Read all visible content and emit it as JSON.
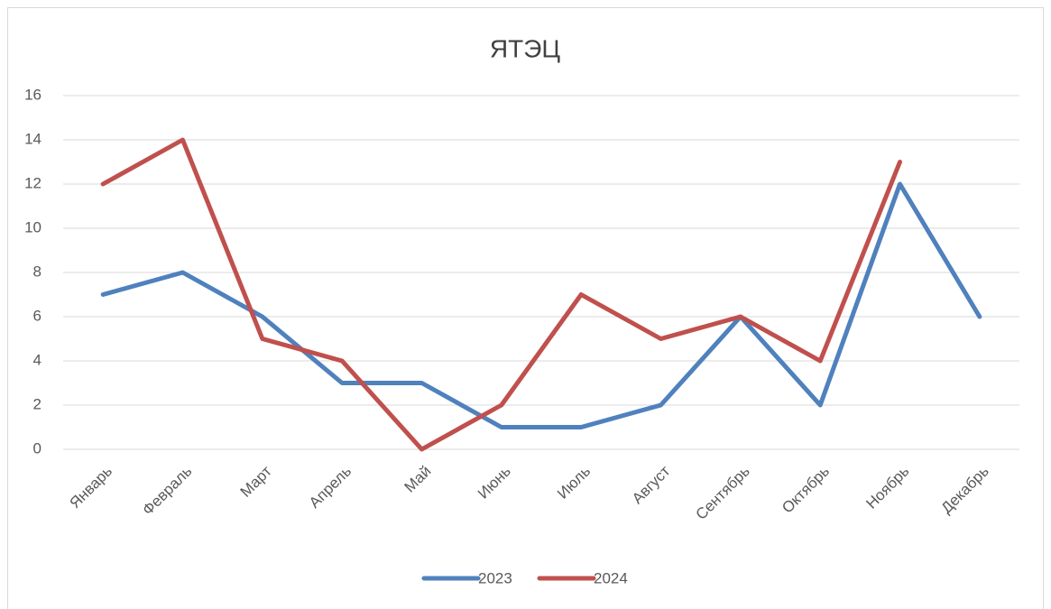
{
  "chart_data": {
    "type": "line",
    "title": "ЯТЭЦ",
    "categories": [
      "Январь",
      "Февраль",
      "Март",
      "Апрель",
      "Май",
      "Июнь",
      "Июль",
      "Август",
      "Сентябрь",
      "Октябрь",
      "Ноябрь",
      "Декабрь"
    ],
    "series": [
      {
        "name": "2023",
        "color": "#4f81bd",
        "values": [
          7,
          8,
          6,
          3,
          3,
          1,
          1,
          2,
          6,
          2,
          12,
          6
        ]
      },
      {
        "name": "2024",
        "color": "#c0504d",
        "values": [
          12,
          14,
          5,
          4,
          0,
          2,
          7,
          5,
          6,
          4,
          13,
          null
        ]
      }
    ],
    "ylim": [
      0,
      16
    ],
    "yticks": [
      0,
      2,
      4,
      6,
      8,
      10,
      12,
      14,
      16
    ],
    "grid": true,
    "legend": "bottom"
  }
}
